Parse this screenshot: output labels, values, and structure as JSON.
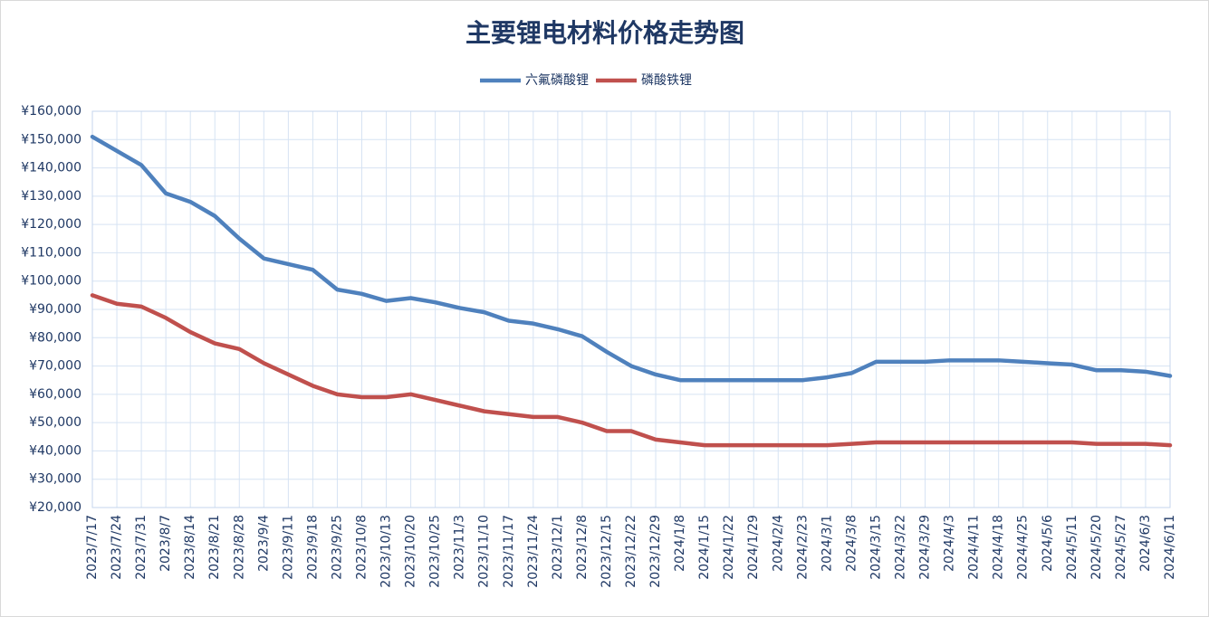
{
  "chart_data": {
    "type": "line",
    "title": "主要锂电材料价格走势图",
    "categories": [
      "2023/7/17",
      "2023/7/24",
      "2023/7/31",
      "2023/8/7",
      "2023/8/14",
      "2023/8/21",
      "2023/8/28",
      "2023/9/4",
      "2023/9/11",
      "2023/9/18",
      "2023/9/25",
      "2023/10/8",
      "2023/10/13",
      "2023/10/20",
      "2023/10/25",
      "2023/11/3",
      "2023/11/10",
      "2023/11/17",
      "2023/11/24",
      "2023/12/1",
      "2023/12/8",
      "2023/12/15",
      "2023/12/22",
      "2023/12/29",
      "2024/1/8",
      "2024/1/15",
      "2024/1/22",
      "2024/1/29",
      "2024/2/4",
      "2024/2/23",
      "2024/3/1",
      "2024/3/8",
      "2024/3/15",
      "2024/3/22",
      "2024/3/29",
      "2024/4/3",
      "2024/4/11",
      "2024/4/18",
      "2024/4/25",
      "2024/5/6",
      "2024/5/11",
      "2024/5/20",
      "2024/5/27",
      "2024/6/3",
      "2024/6/11"
    ],
    "series": [
      {
        "name": "六氟磷酸锂",
        "color": "#4f81bd",
        "values": [
          151000,
          146000,
          141000,
          131000,
          128000,
          123000,
          115000,
          108000,
          106000,
          104000,
          97000,
          95500,
          93000,
          94000,
          92500,
          90500,
          89000,
          86000,
          85000,
          83000,
          80500,
          75000,
          70000,
          67000,
          65000,
          65000,
          65000,
          65000,
          65000,
          65000,
          66000,
          67500,
          71500,
          71500,
          71500,
          72000,
          72000,
          72000,
          71500,
          71000,
          70500,
          68500,
          68500,
          68000,
          66500
        ]
      },
      {
        "name": "磷酸铁锂",
        "color": "#c0504d",
        "values": [
          95000,
          92000,
          91000,
          87000,
          82000,
          78000,
          76000,
          71000,
          67000,
          63000,
          60000,
          59000,
          59000,
          60000,
          58000,
          56000,
          54000,
          53000,
          52000,
          52000,
          50000,
          47000,
          47000,
          44000,
          43000,
          42000,
          42000,
          42000,
          42000,
          42000,
          42000,
          42500,
          43000,
          43000,
          43000,
          43000,
          43000,
          43000,
          43000,
          43000,
          43000,
          42500,
          42500,
          42500,
          42000
        ]
      }
    ],
    "ylim": [
      20000,
      160000
    ],
    "yticks": [
      {
        "value": 20000,
        "label": "¥20,000"
      },
      {
        "value": 30000,
        "label": "¥30,000"
      },
      {
        "value": 40000,
        "label": "¥40,000"
      },
      {
        "value": 50000,
        "label": "¥50,000"
      },
      {
        "value": 60000,
        "label": "¥60,000"
      },
      {
        "value": 70000,
        "label": "¥70,000"
      },
      {
        "value": 80000,
        "label": "¥80,000"
      },
      {
        "value": 90000,
        "label": "¥90,000"
      },
      {
        "value": 100000,
        "label": "¥100,000"
      },
      {
        "value": 110000,
        "label": "¥110,000"
      },
      {
        "value": 120000,
        "label": "¥120,000"
      },
      {
        "value": 130000,
        "label": "¥130,000"
      },
      {
        "value": 140000,
        "label": "¥140,000"
      },
      {
        "value": 150000,
        "label": "¥150,000"
      },
      {
        "value": 160000,
        "label": "¥160,000"
      }
    ],
    "grid": true,
    "legend": "top"
  }
}
